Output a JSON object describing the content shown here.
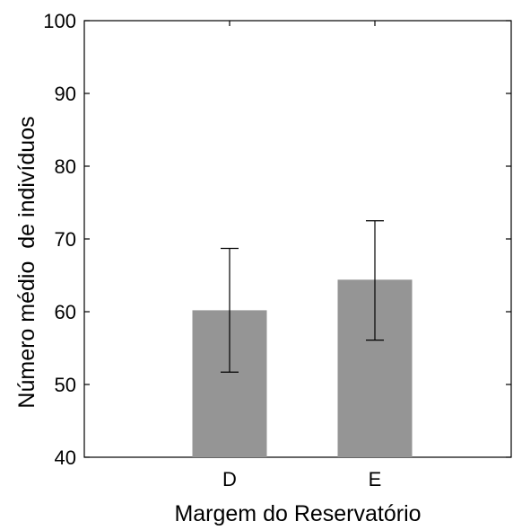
{
  "chart_data": {
    "type": "bar",
    "categories": [
      "D",
      "E"
    ],
    "values": [
      60.2,
      64.4
    ],
    "error_bars": {
      "lower": [
        51.7,
        56.1
      ],
      "upper": [
        68.7,
        72.5
      ]
    },
    "title": "",
    "xlabel": "Margem do Reservatório",
    "ylabel": "Número médio  de indivíduos",
    "ylim": [
      40,
      100
    ],
    "yticks": [
      40,
      50,
      60,
      70,
      80,
      90,
      100
    ],
    "grid": false,
    "legend": "none",
    "colors": {
      "bar": "#959595",
      "axis": "#000000",
      "background": "#ffffff"
    }
  }
}
